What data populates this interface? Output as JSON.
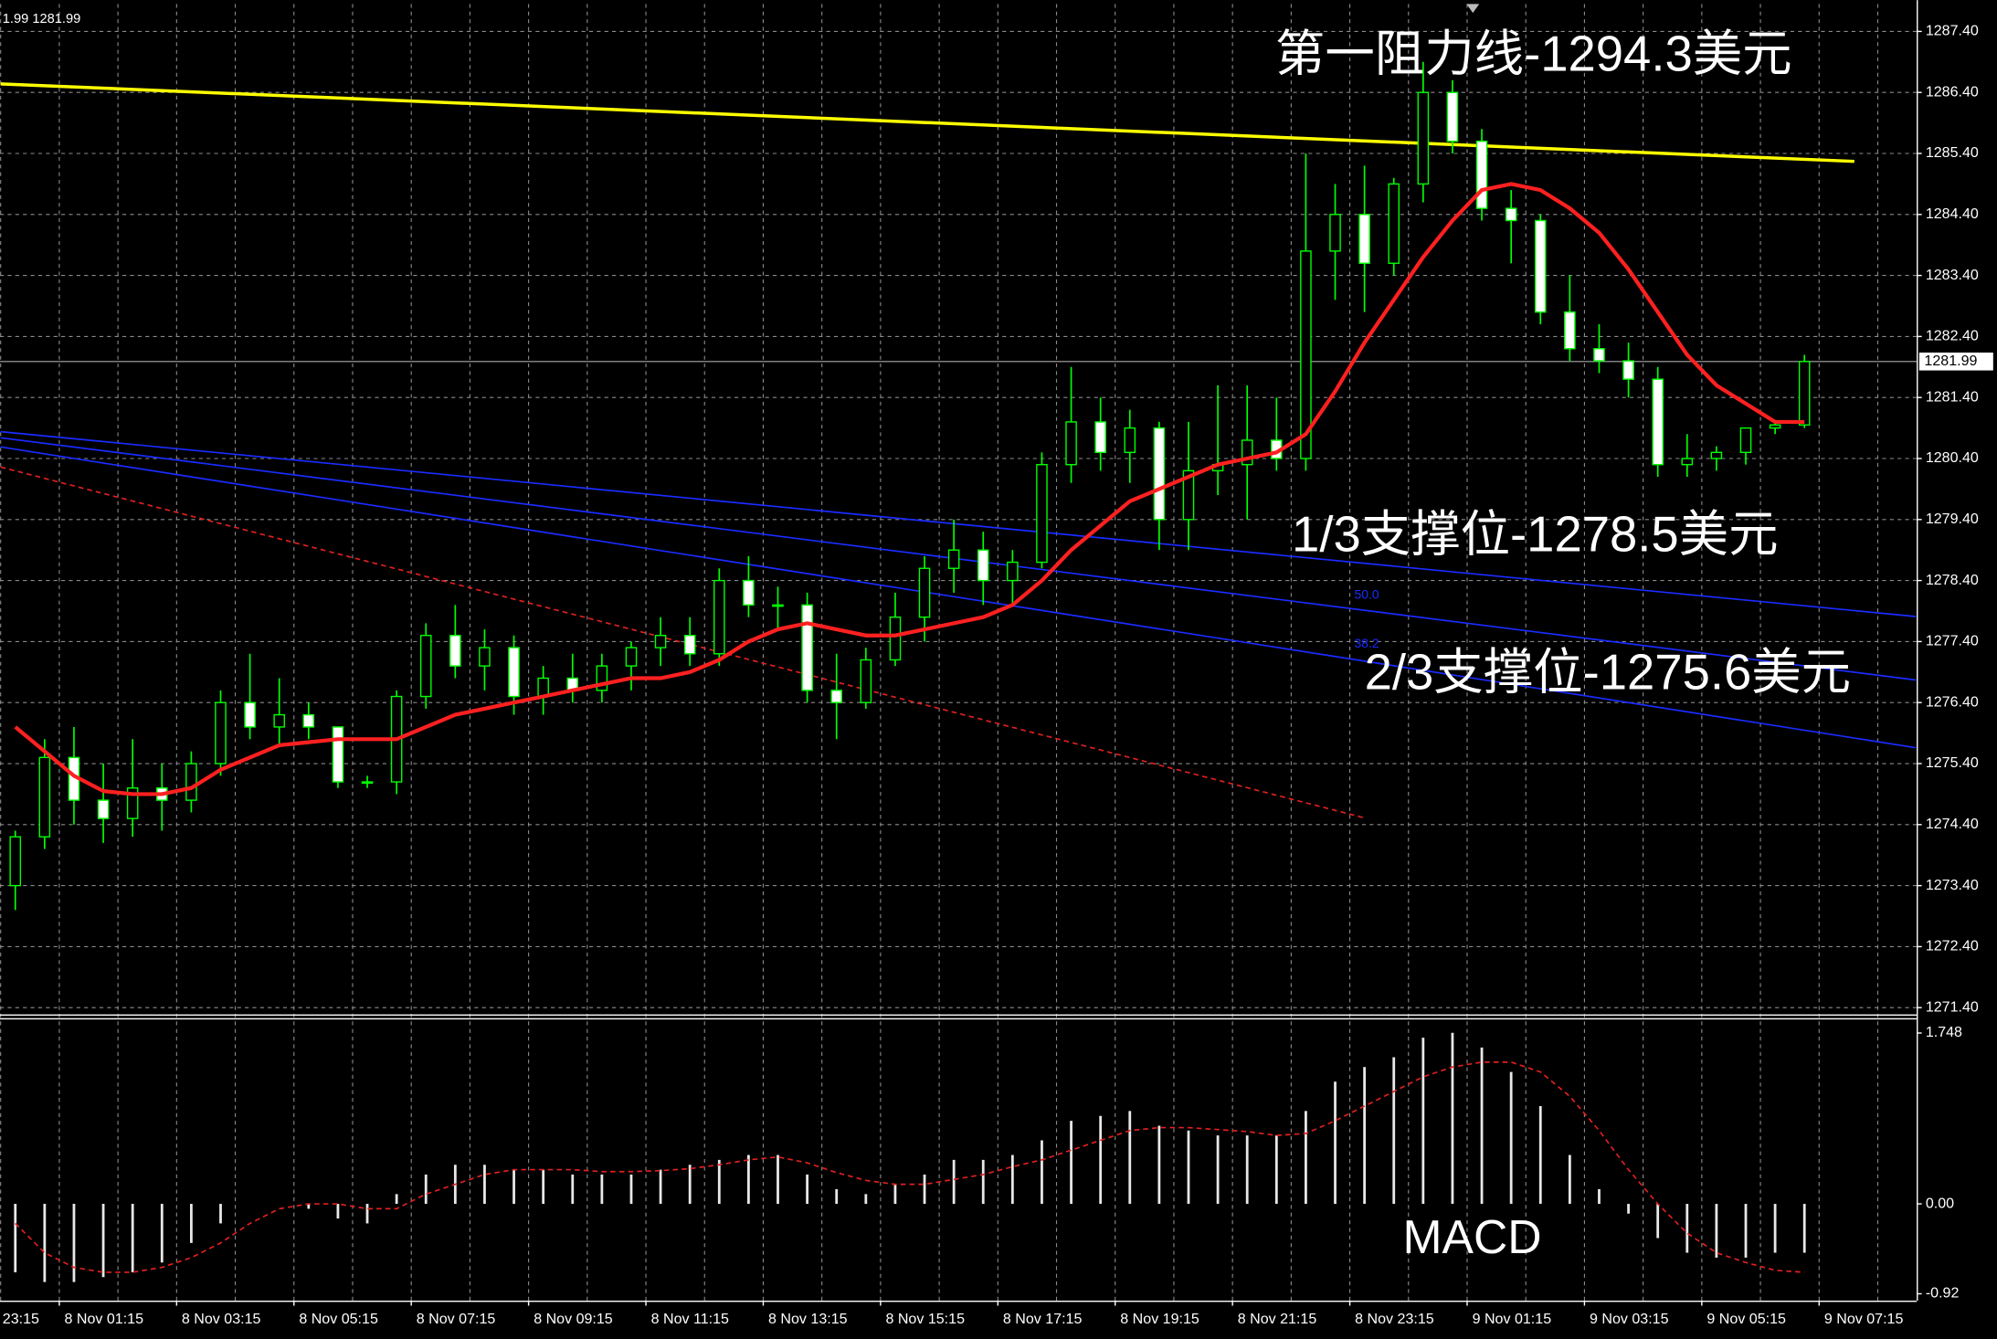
{
  "chart_data": {
    "type": "candlestick",
    "info": "1.99 1281.99",
    "ylim": [
      1271.3,
      1287.85
    ],
    "yticks": [
      {
        "value": 1287.4,
        "label": "1287.40"
      },
      {
        "value": 1286.4,
        "label": "1286.40"
      },
      {
        "value": 1285.4,
        "label": "1285.40"
      },
      {
        "value": 1284.4,
        "label": "1284.40"
      },
      {
        "value": 1283.4,
        "label": "1283.40"
      },
      {
        "value": 1282.4,
        "label": "1282.40"
      },
      {
        "value": 1281.4,
        "label": "1281.40"
      },
      {
        "value": 1280.4,
        "label": "1280.40"
      },
      {
        "value": 1279.4,
        "label": "1279.40"
      },
      {
        "value": 1278.4,
        "label": "1278.40"
      },
      {
        "value": 1277.4,
        "label": "1277.40"
      },
      {
        "value": 1276.4,
        "label": "1276.40"
      },
      {
        "value": 1275.4,
        "label": "1275.40"
      },
      {
        "value": 1274.4,
        "label": "1274.40"
      },
      {
        "value": 1273.4,
        "label": "1273.40"
      },
      {
        "value": 1272.4,
        "label": "1272.40"
      },
      {
        "value": 1271.4,
        "label": "1271.40"
      }
    ],
    "last_price": 1281.99,
    "x_labels": [
      "23:15",
      "8 Nov 01:15",
      "8 Nov 03:15",
      "8 Nov 05:15",
      "8 Nov 07:15",
      "8 Nov 09:15",
      "8 Nov 11:15",
      "8 Nov 13:15",
      "8 Nov 15:15",
      "8 Nov 17:15",
      "8 Nov 19:15",
      "8 Nov 21:15",
      "8 Nov 23:15",
      "9 Nov 01:15",
      "9 Nov 03:15",
      "9 Nov 05:15",
      "9 Nov 07:15"
    ],
    "candles": {
      "color": "#00ff00",
      "open": [
        1273.4,
        1274.2,
        1275.5,
        1274.8,
        1274.5,
        1275.0,
        1274.8,
        1275.4,
        1276.4,
        1276.0,
        1276.2,
        1276.0,
        1275.1,
        1275.1,
        1276.5,
        1277.5,
        1277.0,
        1277.3,
        1276.5,
        1276.8,
        1276.6,
        1277.0,
        1277.3,
        1277.5,
        1277.2,
        1278.4,
        1278.0,
        1278.0,
        1276.6,
        1276.4,
        1277.1,
        1277.8,
        1278.6,
        1278.9,
        1278.4,
        1278.7,
        1280.3,
        1281.0,
        1280.5,
        1280.9,
        1279.4,
        1280.2,
        1280.3,
        1280.7,
        1280.4,
        1283.8,
        1284.4,
        1283.6,
        1284.9,
        1286.4,
        1285.6,
        1284.5,
        1284.3,
        1282.8,
        1282.2,
        1282.0,
        1281.7,
        1280.3,
        1280.4,
        1280.5,
        1280.9,
        1280.95
      ],
      "high": [
        1274.3,
        1275.8,
        1276.0,
        1275.4,
        1275.8,
        1275.4,
        1275.6,
        1276.6,
        1277.2,
        1276.8,
        1276.4,
        1276.0,
        1275.2,
        1276.6,
        1277.7,
        1278.0,
        1277.6,
        1277.5,
        1277.0,
        1277.2,
        1277.2,
        1277.4,
        1277.8,
        1277.8,
        1278.6,
        1278.8,
        1278.3,
        1278.2,
        1277.2,
        1277.3,
        1278.2,
        1278.8,
        1279.4,
        1279.2,
        1278.9,
        1280.5,
        1281.9,
        1281.4,
        1281.2,
        1281.0,
        1281.0,
        1281.6,
        1281.6,
        1281.4,
        1285.4,
        1284.9,
        1285.2,
        1285.0,
        1286.9,
        1286.6,
        1285.8,
        1284.8,
        1284.4,
        1283.4,
        1282.6,
        1282.3,
        1281.9,
        1280.8,
        1280.6,
        1280.9,
        1281.0,
        1282.1
      ],
      "low": [
        1273.0,
        1274.0,
        1274.4,
        1274.1,
        1274.2,
        1274.3,
        1274.6,
        1275.2,
        1275.8,
        1275.7,
        1275.8,
        1275.0,
        1275.0,
        1274.9,
        1276.3,
        1276.8,
        1276.6,
        1276.2,
        1276.2,
        1276.4,
        1276.4,
        1276.6,
        1277.0,
        1277.0,
        1277.0,
        1277.8,
        1277.6,
        1276.4,
        1275.8,
        1276.3,
        1277.0,
        1277.4,
        1278.2,
        1278.0,
        1278.0,
        1278.6,
        1280.0,
        1280.2,
        1280.0,
        1278.9,
        1278.9,
        1279.8,
        1279.4,
        1280.2,
        1280.2,
        1283.0,
        1282.8,
        1283.4,
        1284.6,
        1285.4,
        1284.3,
        1283.6,
        1282.6,
        1282.0,
        1281.8,
        1281.4,
        1280.1,
        1280.1,
        1280.2,
        1280.3,
        1280.8,
        1280.9
      ],
      "close": [
        1274.2,
        1275.5,
        1274.8,
        1274.5,
        1275.0,
        1274.8,
        1275.4,
        1276.4,
        1276.0,
        1276.2,
        1276.0,
        1275.1,
        1275.1,
        1276.5,
        1277.5,
        1277.0,
        1277.3,
        1276.5,
        1276.8,
        1276.6,
        1277.0,
        1277.3,
        1277.5,
        1277.2,
        1278.4,
        1278.0,
        1278.0,
        1276.6,
        1276.4,
        1277.1,
        1277.8,
        1278.6,
        1278.9,
        1278.4,
        1278.7,
        1280.3,
        1281.0,
        1280.5,
        1280.9,
        1279.4,
        1280.2,
        1280.3,
        1280.7,
        1280.4,
        1283.8,
        1284.4,
        1283.6,
        1284.9,
        1286.4,
        1285.6,
        1284.5,
        1284.3,
        1282.8,
        1282.2,
        1282.0,
        1281.7,
        1280.3,
        1280.4,
        1280.5,
        1280.9,
        1280.95,
        1281.99
      ]
    },
    "ma": {
      "color": "#ff2020",
      "values": [
        1276.0,
        1275.6,
        1275.2,
        1274.95,
        1274.9,
        1274.9,
        1275.0,
        1275.3,
        1275.5,
        1275.7,
        1275.75,
        1275.8,
        1275.8,
        1275.8,
        1276.0,
        1276.2,
        1276.3,
        1276.4,
        1276.5,
        1276.6,
        1276.7,
        1276.8,
        1276.8,
        1276.9,
        1277.1,
        1277.4,
        1277.6,
        1277.7,
        1277.6,
        1277.5,
        1277.5,
        1277.6,
        1277.7,
        1277.8,
        1278.0,
        1278.4,
        1278.9,
        1279.3,
        1279.7,
        1279.9,
        1280.1,
        1280.3,
        1280.4,
        1280.5,
        1280.8,
        1281.5,
        1282.3,
        1283.0,
        1283.7,
        1284.3,
        1284.8,
        1284.9,
        1284.8,
        1284.5,
        1284.1,
        1283.5,
        1282.8,
        1282.1,
        1281.6,
        1281.3,
        1281.0,
        1281.0
      ]
    },
    "lines": [
      {
        "color": "#ffff00",
        "style": "solid",
        "x": [
          -0.5,
          62.7
        ],
        "values": [
          1286.54,
          1285.27
        ]
      },
      {
        "color": "#1a2cff",
        "style": "solid",
        "x": [
          -0.5,
          64.8
        ],
        "values": [
          1280.84,
          1277.81
        ]
      },
      {
        "color": "#1a2cff",
        "style": "solid",
        "x": [
          -0.5,
          64.8
        ],
        "values": [
          1280.74,
          1276.77
        ]
      },
      {
        "color": "#1a2cff",
        "style": "solid",
        "x": [
          -0.5,
          64.8
        ],
        "values": [
          1280.59,
          1275.66
        ]
      },
      {
        "color": "#e02020",
        "style": "dashed",
        "x": [
          -0.5,
          46
        ],
        "values": [
          1280.26,
          1274.51
        ]
      }
    ],
    "fib_labels": [
      "50.0",
      "38.2"
    ],
    "annotations": [
      "第一阻力线-1294.3美元",
      "1/3支撑位-1278.5美元",
      "2/3支撑位-1275.6美元"
    ],
    "macd": {
      "title": "MACD",
      "ylim": [
        -0.99,
        1.88
      ],
      "yticks": [
        1.748,
        {
          "value": 0,
          "label": "0.00"
        },
        -0.92
      ],
      "histogram": {
        "color": "#e8e8e8",
        "values": [
          -0.7,
          -0.8,
          -0.8,
          -0.75,
          -0.7,
          -0.6,
          -0.4,
          -0.2,
          0.0,
          0.0,
          -0.05,
          -0.15,
          -0.2,
          0.1,
          0.3,
          0.4,
          0.4,
          0.35,
          0.35,
          0.3,
          0.3,
          0.3,
          0.35,
          0.4,
          0.45,
          0.5,
          0.5,
          0.3,
          0.15,
          0.1,
          0.2,
          0.3,
          0.45,
          0.45,
          0.5,
          0.65,
          0.85,
          0.9,
          0.95,
          0.8,
          0.75,
          0.7,
          0.7,
          0.7,
          0.95,
          1.25,
          1.4,
          1.5,
          1.7,
          1.75,
          1.6,
          1.35,
          1.0,
          0.5,
          0.15,
          -0.1,
          -0.35,
          -0.5,
          -0.55,
          -0.55,
          -0.5,
          -0.5
        ]
      },
      "signal": {
        "color": "#e02020",
        "values": [
          -0.2,
          -0.5,
          -0.65,
          -0.7,
          -0.7,
          -0.65,
          -0.55,
          -0.4,
          -0.2,
          -0.05,
          0.0,
          0.0,
          -0.05,
          -0.05,
          0.1,
          0.2,
          0.3,
          0.35,
          0.35,
          0.35,
          0.33,
          0.33,
          0.34,
          0.36,
          0.4,
          0.45,
          0.48,
          0.42,
          0.32,
          0.24,
          0.2,
          0.2,
          0.25,
          0.3,
          0.38,
          0.45,
          0.55,
          0.65,
          0.75,
          0.78,
          0.78,
          0.76,
          0.74,
          0.7,
          0.72,
          0.85,
          1.0,
          1.15,
          1.3,
          1.4,
          1.45,
          1.45,
          1.35,
          1.1,
          0.75,
          0.35,
          0.0,
          -0.3,
          -0.5,
          -0.6,
          -0.68,
          -0.7
        ]
      }
    }
  }
}
